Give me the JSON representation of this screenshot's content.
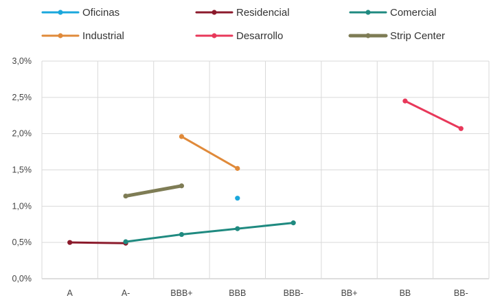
{
  "chart_data": {
    "type": "line",
    "categories": [
      "A",
      "A-",
      "BBB+",
      "BBB",
      "BBB-",
      "BB+",
      "BB",
      "BB-"
    ],
    "ylim": [
      0,
      3.0
    ],
    "yticks": [
      "0,0%",
      "0,5%",
      "1,0%",
      "1,5%",
      "2,0%",
      "2,5%",
      "3,0%"
    ],
    "ytick_values": [
      0,
      0.5,
      1.0,
      1.5,
      2.0,
      2.5,
      3.0
    ],
    "grid": "horizontal and vertical",
    "legend_position": "top",
    "series": [
      {
        "name": "Oficinas",
        "color": "#1aa7dc",
        "thick": false,
        "values": [
          null,
          null,
          null,
          1.11,
          null,
          null,
          null,
          null
        ]
      },
      {
        "name": "Residencial",
        "color": "#8b1a2b",
        "thick": false,
        "values": [
          0.5,
          0.49,
          null,
          null,
          null,
          null,
          null,
          null
        ]
      },
      {
        "name": "Comercial",
        "color": "#1f8a80",
        "thick": false,
        "values": [
          null,
          0.51,
          0.61,
          0.69,
          0.77,
          null,
          null,
          null
        ]
      },
      {
        "name": "Industrial",
        "color": "#e08a3a",
        "thick": false,
        "values": [
          null,
          null,
          1.96,
          1.52,
          null,
          null,
          null,
          null
        ]
      },
      {
        "name": "Desarrollo",
        "color": "#e8385a",
        "thick": false,
        "values": [
          null,
          null,
          null,
          null,
          null,
          null,
          2.45,
          2.07
        ]
      },
      {
        "name": "Strip Center",
        "color": "#7e7c55",
        "thick": true,
        "values": [
          null,
          1.14,
          1.28,
          null,
          null,
          null,
          null,
          null
        ]
      }
    ]
  }
}
